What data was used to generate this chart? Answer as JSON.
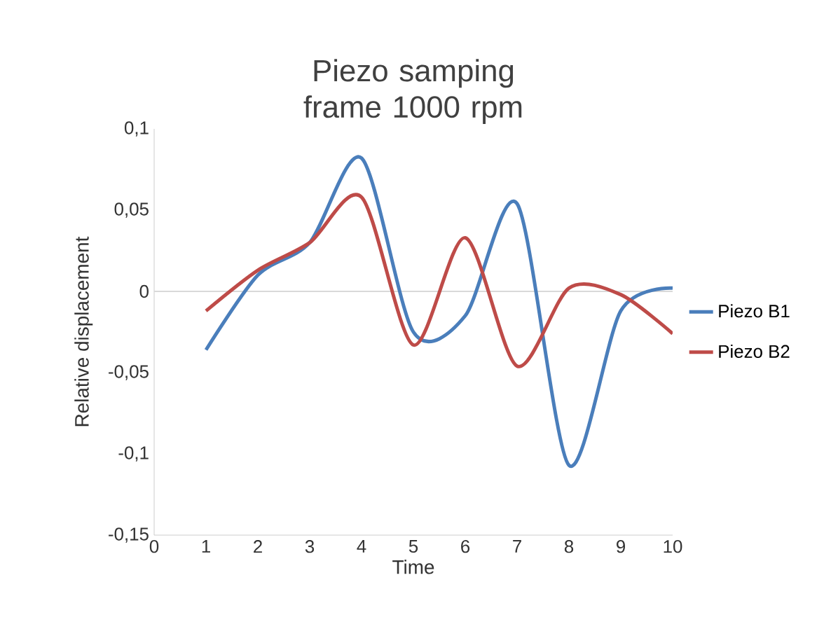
{
  "chart_data": {
    "type": "line",
    "title": "Piezo samping frame 1000 rpm",
    "xlabel": "Time",
    "ylabel": "Relative displacement",
    "x": [
      1,
      2,
      3,
      4,
      5,
      6,
      7,
      8,
      9,
      10
    ],
    "series": [
      {
        "name": "Piezo B1",
        "color": "#4a7ebb",
        "values": [
          -0.036,
          0.01,
          0.03,
          0.082,
          -0.025,
          -0.015,
          0.054,
          -0.107,
          -0.012,
          0.002
        ]
      },
      {
        "name": "Piezo B2",
        "color": "#be4b48",
        "values": [
          -0.012,
          0.013,
          0.03,
          0.058,
          -0.033,
          0.033,
          -0.046,
          0.002,
          -0.002,
          -0.026
        ]
      }
    ],
    "xlim": [
      0,
      10
    ],
    "xticks": [
      0,
      1,
      2,
      3,
      4,
      5,
      6,
      7,
      8,
      9,
      10
    ],
    "ylim": [
      -0.15,
      0.1
    ],
    "yticks": [
      {
        "value": -0.15,
        "label": "-0,15"
      },
      {
        "value": -0.1,
        "label": "-0,1"
      },
      {
        "value": -0.05,
        "label": "-0,05"
      },
      {
        "value": 0,
        "label": "0"
      },
      {
        "value": 0.05,
        "label": "0,05"
      },
      {
        "value": 0.1,
        "label": "0,1"
      }
    ],
    "ref_lines": [
      {
        "axis": "y",
        "value": 0,
        "color": "#d9d9d9"
      }
    ],
    "legend": "right",
    "grid": false,
    "marker": "none",
    "line_style": "solid"
  }
}
